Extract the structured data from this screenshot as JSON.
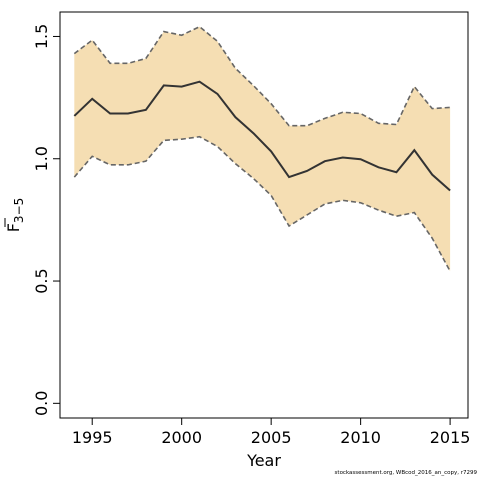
{
  "chart_data": {
    "type": "area",
    "xlabel": "Year",
    "ylabel": {
      "base": "F",
      "subscript": "3−5",
      "overline": true
    },
    "xlim": [
      1993.2,
      2016
    ],
    "ylim": [
      -0.06,
      1.6
    ],
    "x_ticks": [
      "1995",
      "2000",
      "2005",
      "2010",
      "2015"
    ],
    "y_ticks": [
      "0.0",
      "0.5",
      "1.0",
      "1.5"
    ],
    "colors": {
      "band": "#f5deb3",
      "estimate": "#333333",
      "bounds": "#666666"
    },
    "x": [
      1994,
      1995,
      1996,
      1997,
      1998,
      1999,
      2000,
      2001,
      2002,
      2003,
      2004,
      2005,
      2006,
      2007,
      2008,
      2009,
      2010,
      2011,
      2012,
      2013,
      2014,
      2015
    ],
    "estimate": [
      1.175,
      1.245,
      1.185,
      1.185,
      1.2,
      1.3,
      1.295,
      1.315,
      1.265,
      1.17,
      1.105,
      1.03,
      0.925,
      0.95,
      0.99,
      1.005,
      0.998,
      0.965,
      0.945,
      1.035,
      0.935,
      0.87
    ],
    "upper": [
      1.43,
      1.485,
      1.39,
      1.39,
      1.41,
      1.52,
      1.505,
      1.54,
      1.48,
      1.37,
      1.3,
      1.225,
      1.135,
      1.135,
      1.165,
      1.19,
      1.185,
      1.145,
      1.14,
      1.295,
      1.205,
      1.21
    ],
    "lower": [
      0.925,
      1.01,
      0.975,
      0.975,
      0.99,
      1.075,
      1.08,
      1.09,
      1.05,
      0.98,
      0.92,
      0.85,
      0.725,
      0.77,
      0.815,
      0.83,
      0.82,
      0.79,
      0.765,
      0.78,
      0.675,
      0.54
    ]
  },
  "footnote": "stockassessment.org, WBcod_2016_an_copy, r7299"
}
